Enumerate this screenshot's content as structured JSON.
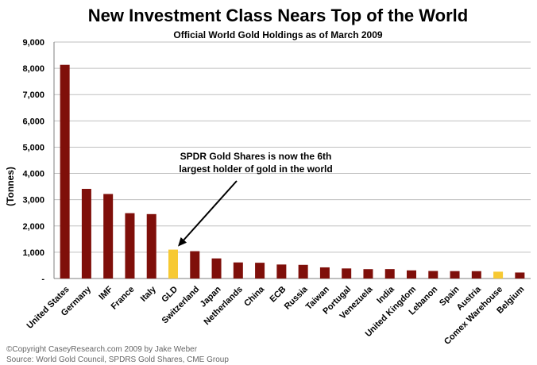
{
  "chart_data": {
    "type": "bar",
    "title": "New Investment Class Nears Top of the World",
    "subtitle": "Official World Gold Holdings as of March 2009",
    "ylabel": "(Tonnes)",
    "xlabel": "",
    "ylim": [
      0,
      9000
    ],
    "yticks": [
      0,
      1000,
      2000,
      3000,
      4000,
      5000,
      6000,
      7000,
      8000,
      9000
    ],
    "ytick_labels": [
      "-",
      "1,000",
      "2,000",
      "3,000",
      "4,000",
      "5,000",
      "6,000",
      "7,000",
      "8,000",
      "9,000"
    ],
    "grid": true,
    "categories": [
      "United States",
      "Germany",
      "IMF",
      "France",
      "Italy",
      "GLD",
      "Switzerland",
      "Japan",
      "Netherlands",
      "China",
      "ECB",
      "Russia",
      "Taiwan",
      "Portugal",
      "Venezuela",
      "India",
      "United Kingdom",
      "Lebanon",
      "Spain",
      "Austria",
      "Comex Warehouse",
      "Belgium"
    ],
    "values": [
      8133,
      3412,
      3217,
      2487,
      2452,
      1100,
      1040,
      765,
      612,
      600,
      533,
      520,
      424,
      383,
      356,
      358,
      310,
      287,
      282,
      280,
      260,
      228
    ],
    "colors": [
      "#7f0f0a",
      "#7f0f0a",
      "#7f0f0a",
      "#7f0f0a",
      "#7f0f0a",
      "#f7c933",
      "#7f0f0a",
      "#7f0f0a",
      "#7f0f0a",
      "#7f0f0a",
      "#7f0f0a",
      "#7f0f0a",
      "#7f0f0a",
      "#7f0f0a",
      "#7f0f0a",
      "#7f0f0a",
      "#7f0f0a",
      "#7f0f0a",
      "#7f0f0a",
      "#7f0f0a",
      "#f7c933",
      "#7f0f0a"
    ],
    "annotation": {
      "lines": [
        "SPDR Gold Shares is now the 6th",
        "largest holder of gold in the world"
      ],
      "target_category": "GLD"
    }
  },
  "footer": {
    "copyright": "©Copyright CaseyResearch.com 2009 by Jake Weber",
    "source": "Source: World Gold Council, SPDRS Gold Shares, CME Group"
  }
}
